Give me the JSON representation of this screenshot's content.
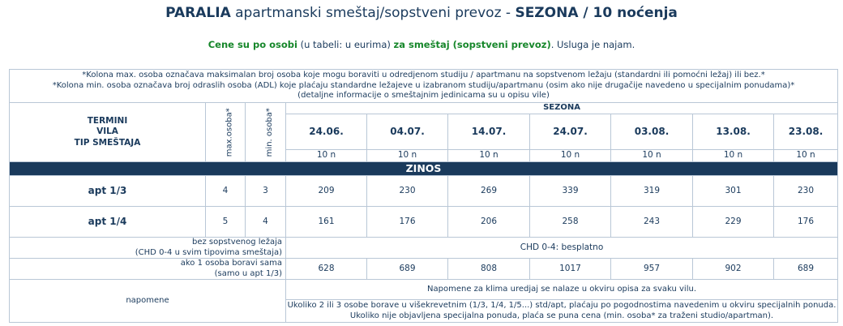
{
  "header": {
    "place": "PARALIA",
    "title_mid": " apartmanski smeštaj/sopstveni prevoz - ",
    "season_title": "SEZONA / 10 noćenja"
  },
  "subtitle": {
    "part1": "Cene su po osobi",
    "part2": " (u tabeli: u eurima) ",
    "part3": "za smeštaj (sopstveni prevoz)",
    "part4": ". Usluga je najam."
  },
  "notes": [
    "*Kolona max. osoba označava maksimalan broj osoba koje mogu boraviti u odredjenom studiju / apartmanu na sopstvenom ležaju (standardni ili pomoćni ležaj) ili bez.*",
    "*Kolona min. osoba označava broj odraslih osoba (ADL) koje plaćaju standardne ležajeve u izabranom studiju/apartmanu (osim ako nije drugačije navedeno u specijalnim ponudama)*",
    "(detaljne informacije o smeštajnim jedinicama su u opisu vile)"
  ],
  "table": {
    "termini_lines": [
      "TERMINI",
      "VILA",
      "TIP SMEŠTAJA"
    ],
    "max_label": "max.osoba*",
    "min_label": "min. osoba*",
    "season_label": "SEZONA",
    "dates": [
      "24.06.",
      "04.07.",
      "14.07.",
      "24.07.",
      "03.08.",
      "13.08.",
      "23.08."
    ],
    "nights": [
      "10 n",
      "10 n",
      "10 n",
      "10 n",
      "10 n",
      "10 n",
      "10 n"
    ],
    "villa": "ZINOS",
    "rows": [
      {
        "type": "apt 1/3",
        "max": "4",
        "min": "3",
        "prices": [
          "209",
          "230",
          "269",
          "339",
          "319",
          "301",
          "230"
        ]
      },
      {
        "type": "apt 1/4",
        "max": "5",
        "min": "4",
        "prices": [
          "161",
          "176",
          "206",
          "258",
          "243",
          "229",
          "176"
        ]
      }
    ],
    "chd_label_1": "bez sopstvenog ležaja",
    "chd_label_2": "(CHD 0-4 u svim tipovima smeštaja)",
    "chd_value": "CHD 0-4: besplatno",
    "single_label_1": "ako 1 osoba boravi sama",
    "single_label_2": "(samo u apt 1/3)",
    "single_prices": [
      "628",
      "689",
      "808",
      "1017",
      "957",
      "902",
      "689"
    ],
    "remarks_label": "napomene",
    "remark_1": "Napomene za klima uredjaj se nalaze u okviru opisa za svaku vilu.",
    "remark_2a": "Ukoliko 2 ili 3 osobe borave u višekrevetnim (1/3, 1/4, 1/5...) std/apt, plaćaju po pogodnostima navedenim u okviru specijalnih ponuda.",
    "remark_2b": "Ukoliko nije objavljena specijalna ponuda, plaća se puna cena (min. osoba* za traženi studio/apartman)."
  },
  "colors": {
    "text": "#1a3a5c",
    "accent_green": "#17872b",
    "band": "#1a3a5c",
    "border": "#b9c7d6"
  }
}
